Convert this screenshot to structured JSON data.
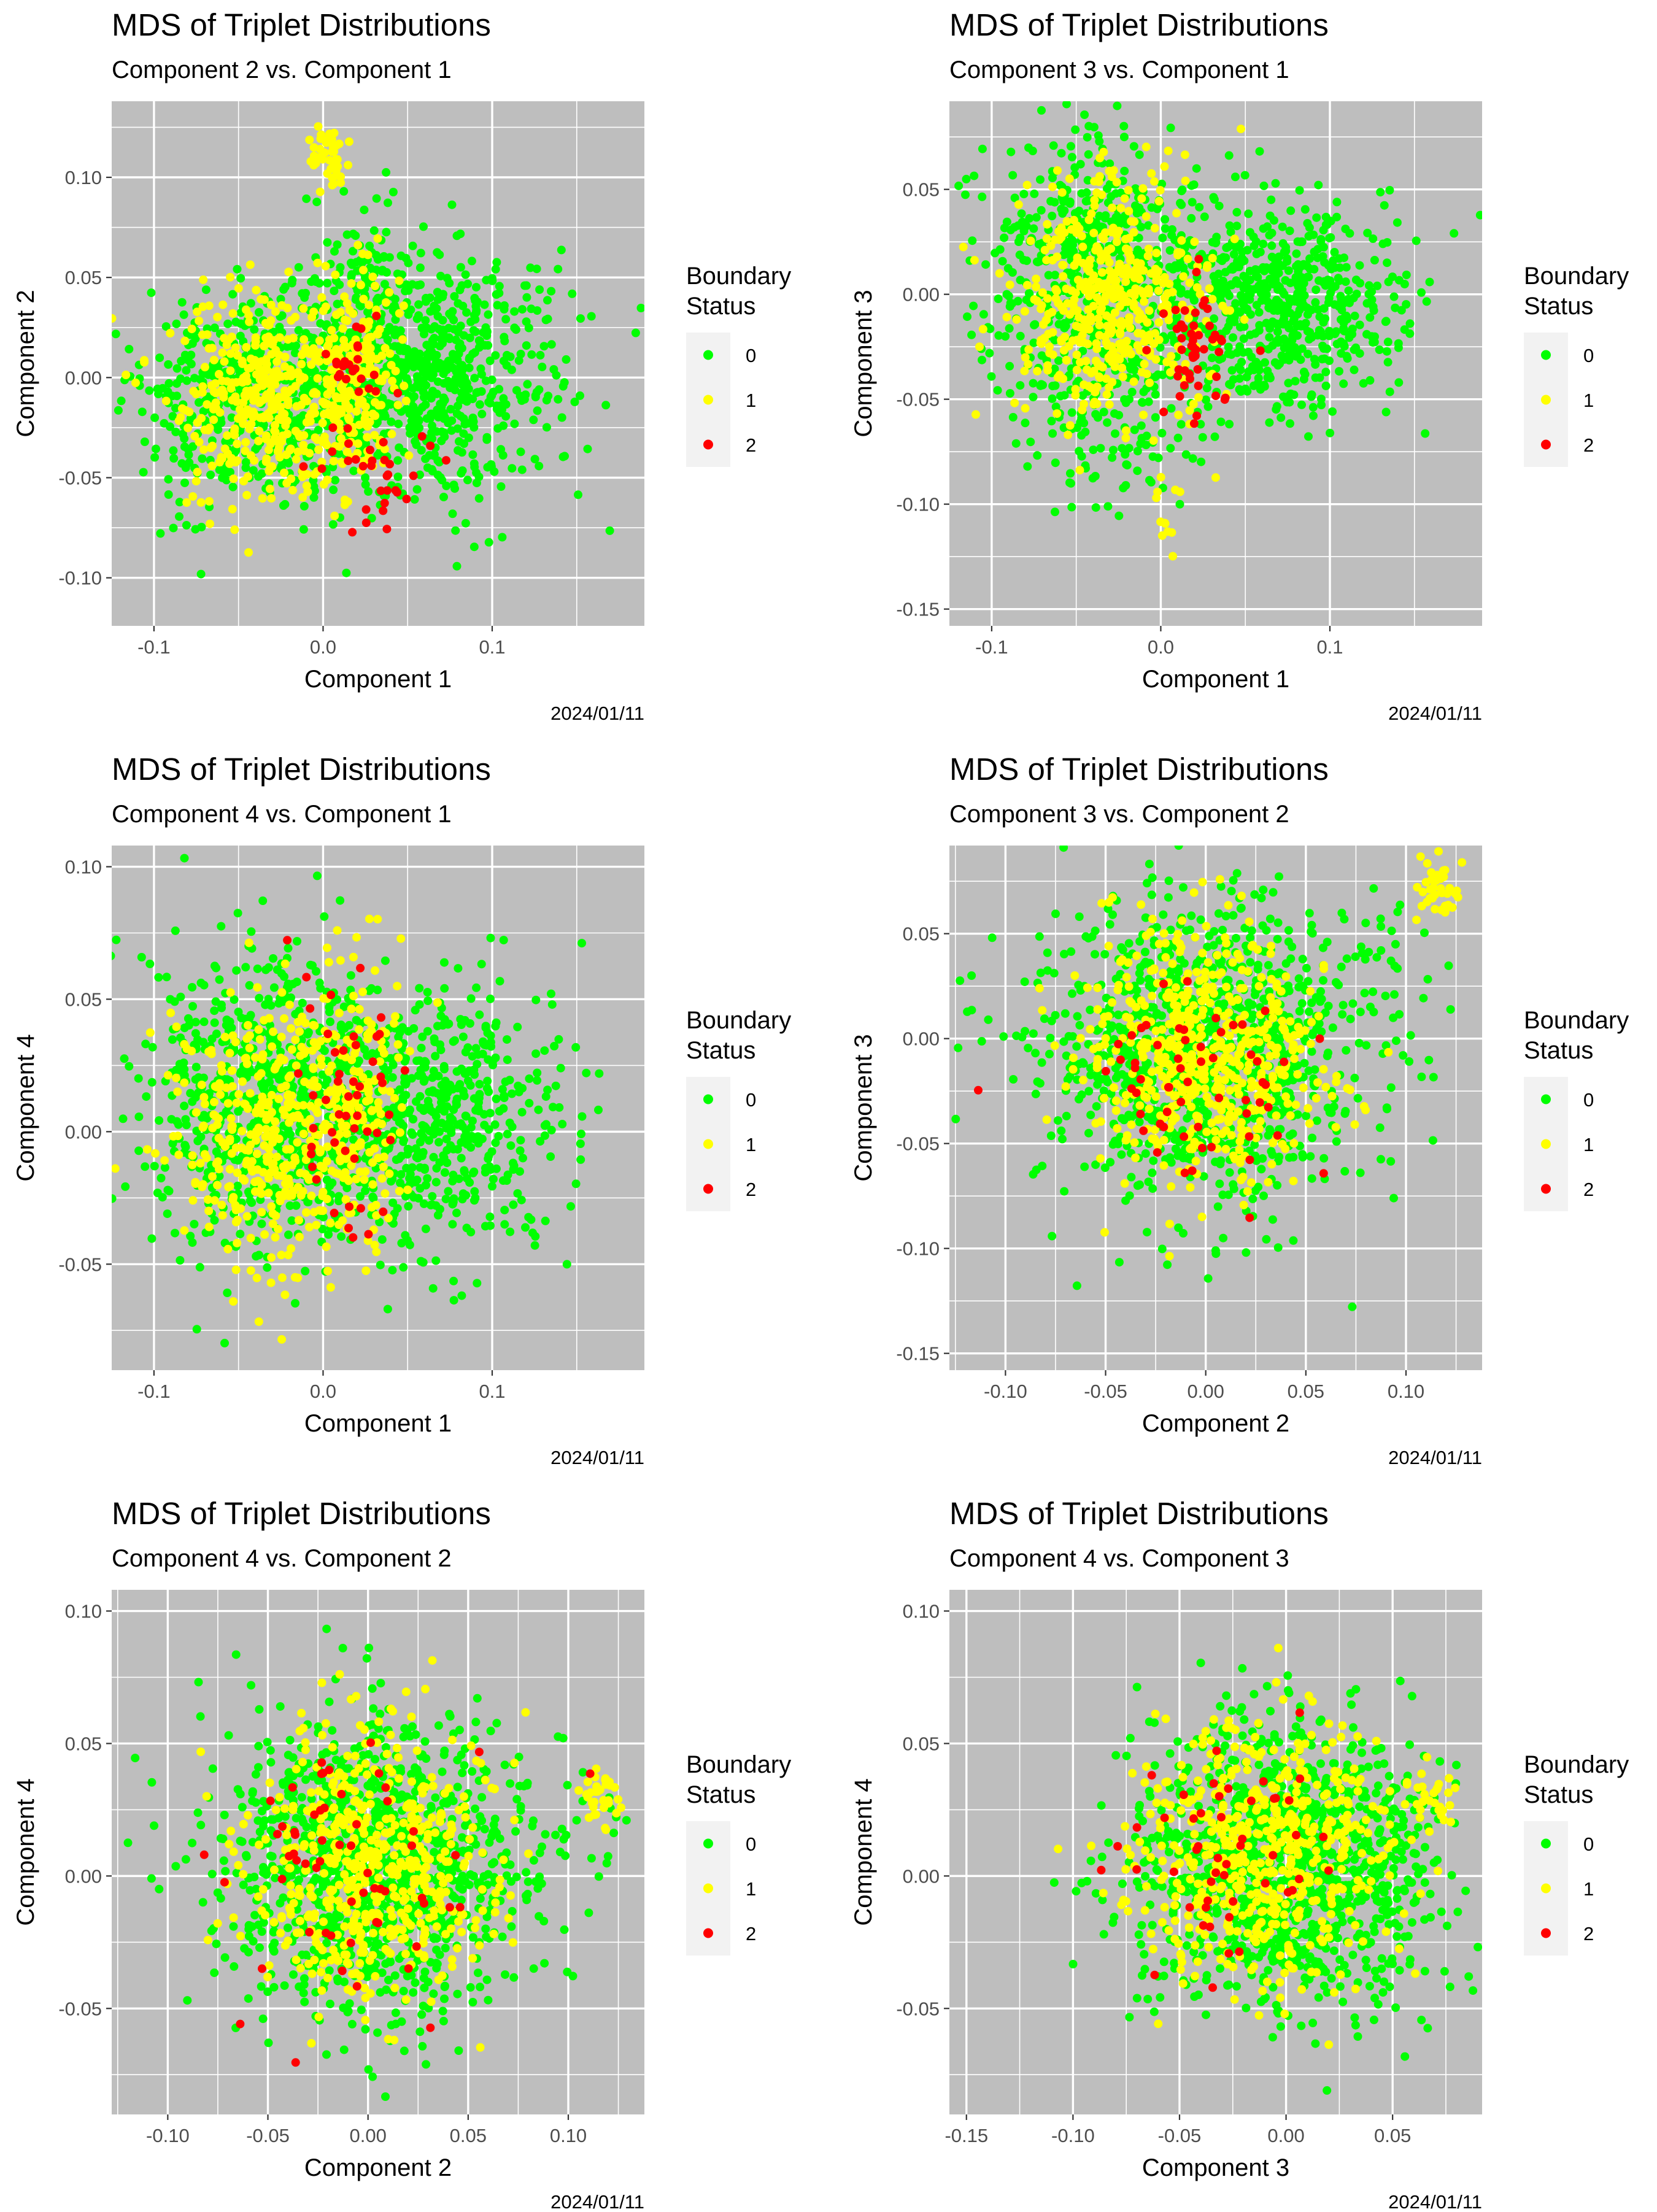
{
  "colors": {
    "panel_bg": "#bebebe",
    "grid": "#ffffff",
    "status_0": "#00ff00",
    "status_1": "#ffff00",
    "status_2": "#ff0000",
    "legend_key_bg": "#f2f2f2",
    "text": "#000000",
    "tick_text": "#4d4d4d"
  },
  "chart_data": [
    {
      "type": "scatter",
      "title": "MDS of Triplet Distributions",
      "subtitle": "Component 2 vs. Component 1",
      "xlabel": "Component 1",
      "ylabel": "Component 2",
      "caption": "2024/01/11",
      "xlim": [
        -0.125,
        0.19
      ],
      "ylim": [
        -0.124,
        0.138
      ],
      "xticks": [
        -0.1,
        0.0,
        0.1
      ],
      "xtick_labels": [
        "-0.1",
        "0.0",
        "0.1"
      ],
      "yticks": [
        -0.1,
        -0.05,
        0.0,
        0.05,
        0.1
      ],
      "ytick_labels": [
        "-0.10",
        "-0.05",
        "0.00",
        "0.05",
        "0.10"
      ],
      "legend": {
        "title_lines": [
          "Boundary",
          "Status"
        ],
        "entries": [
          "0",
          "1",
          "2"
        ],
        "position": "right"
      },
      "series": [
        {
          "name": "0",
          "clusters": [
            {
              "cx": 0.06,
              "cy": 0.0,
              "sx": 0.04,
              "sy": 0.03,
              "n": 700
            },
            {
              "cx": -0.04,
              "cy": -0.01,
              "sx": 0.035,
              "sy": 0.025,
              "n": 500
            },
            {
              "cx": 0.02,
              "cy": 0.05,
              "sx": 0.02,
              "sy": 0.02,
              "n": 100
            }
          ]
        },
        {
          "name": "1",
          "clusters": [
            {
              "cx": -0.03,
              "cy": -0.01,
              "sx": 0.03,
              "sy": 0.025,
              "n": 420
            },
            {
              "cx": 0.02,
              "cy": 0.0,
              "sx": 0.012,
              "sy": 0.025,
              "n": 150
            },
            {
              "cx": 0.005,
              "cy": 0.112,
              "sx": 0.007,
              "sy": 0.008,
              "n": 40
            }
          ]
        },
        {
          "name": "2",
          "clusters": [
            {
              "cx": 0.03,
              "cy": -0.04,
              "sx": 0.015,
              "sy": 0.02,
              "n": 40
            },
            {
              "cx": 0.015,
              "cy": 0.01,
              "sx": 0.008,
              "sy": 0.01,
              "n": 15
            }
          ]
        }
      ]
    },
    {
      "type": "scatter",
      "title": "MDS of Triplet Distributions",
      "subtitle": "Component 3 vs. Component 1",
      "xlabel": "Component 1",
      "ylabel": "Component 3",
      "caption": "2024/01/11",
      "xlim": [
        -0.125,
        0.19
      ],
      "ylim": [
        -0.158,
        0.092
      ],
      "xticks": [
        -0.1,
        0.0,
        0.1
      ],
      "xtick_labels": [
        "-0.1",
        "0.0",
        "0.1"
      ],
      "yticks": [
        -0.15,
        -0.1,
        -0.05,
        0.0,
        0.05
      ],
      "ytick_labels": [
        "-0.15",
        "-0.10",
        "-0.05",
        "0.00",
        "0.05"
      ],
      "legend": {
        "title_lines": [
          "Boundary",
          "Status"
        ],
        "entries": [
          "0",
          "1",
          "2"
        ],
        "position": "right"
      },
      "series": [
        {
          "name": "0",
          "clusters": [
            {
              "cx": 0.07,
              "cy": -0.005,
              "sx": 0.035,
              "sy": 0.025,
              "n": 600
            },
            {
              "cx": -0.04,
              "cy": 0.005,
              "sx": 0.035,
              "sy": 0.035,
              "n": 600
            },
            {
              "cx": -0.03,
              "cy": -0.07,
              "sx": 0.03,
              "sy": 0.02,
              "n": 80
            }
          ]
        },
        {
          "name": "1",
          "clusters": [
            {
              "cx": -0.03,
              "cy": 0.0,
              "sx": 0.03,
              "sy": 0.03,
              "n": 450
            },
            {
              "cx": 0.0,
              "cy": -0.11,
              "sx": 0.006,
              "sy": 0.015,
              "n": 12
            }
          ]
        },
        {
          "name": "2",
          "clusters": [
            {
              "cx": 0.02,
              "cy": -0.03,
              "sx": 0.012,
              "sy": 0.015,
              "n": 50
            }
          ]
        }
      ]
    },
    {
      "type": "scatter",
      "title": "MDS of Triplet Distributions",
      "subtitle": "Component 4 vs. Component 1",
      "xlabel": "Component 1",
      "ylabel": "Component 4",
      "caption": "2024/01/11",
      "xlim": [
        -0.125,
        0.19
      ],
      "ylim": [
        -0.09,
        0.108
      ],
      "xticks": [
        -0.1,
        0.0,
        0.1
      ],
      "xtick_labels": [
        "-0.1",
        "0.0",
        "0.1"
      ],
      "yticks": [
        -0.05,
        0.0,
        0.05,
        0.1
      ],
      "ytick_labels": [
        "-0.05",
        "0.00",
        "0.05",
        "0.10"
      ],
      "legend": {
        "title_lines": [
          "Boundary",
          "Status"
        ],
        "entries": [
          "0",
          "1",
          "2"
        ],
        "position": "right"
      },
      "series": [
        {
          "name": "0",
          "clusters": [
            {
              "cx": 0.06,
              "cy": 0.005,
              "sx": 0.04,
              "sy": 0.025,
              "n": 650
            },
            {
              "cx": -0.04,
              "cy": 0.01,
              "sx": 0.035,
              "sy": 0.028,
              "n": 600
            }
          ]
        },
        {
          "name": "1",
          "clusters": [
            {
              "cx": -0.03,
              "cy": 0.0,
              "sx": 0.03,
              "sy": 0.025,
              "n": 400
            },
            {
              "cx": 0.02,
              "cy": 0.01,
              "sx": 0.012,
              "sy": 0.025,
              "n": 150
            }
          ]
        },
        {
          "name": "2",
          "clusters": [
            {
              "cx": 0.015,
              "cy": 0.01,
              "sx": 0.015,
              "sy": 0.025,
              "n": 50
            }
          ]
        }
      ]
    },
    {
      "type": "scatter",
      "title": "MDS of Triplet Distributions",
      "subtitle": "Component 3 vs. Component 2",
      "xlabel": "Component 2",
      "ylabel": "Component 3",
      "caption": "2024/01/11",
      "xlim": [
        -0.128,
        0.138
      ],
      "ylim": [
        -0.158,
        0.092
      ],
      "xticks": [
        -0.1,
        -0.05,
        0.0,
        0.05,
        0.1
      ],
      "xtick_labels": [
        "-0.10",
        "-0.05",
        "0.00",
        "0.05",
        "0.10"
      ],
      "yticks": [
        -0.15,
        -0.1,
        -0.05,
        0.0,
        0.05
      ],
      "ytick_labels": [
        "-0.15",
        "-0.10",
        "-0.05",
        "0.00",
        "0.05"
      ],
      "legend": {
        "title_lines": [
          "Boundary",
          "Status"
        ],
        "entries": [
          "0",
          "1",
          "2"
        ],
        "position": "right"
      },
      "series": [
        {
          "name": "0",
          "clusters": [
            {
              "cx": 0.0,
              "cy": -0.005,
              "sx": 0.04,
              "sy": 0.035,
              "n": 1100
            },
            {
              "cx": 0.08,
              "cy": 0.03,
              "sx": 0.02,
              "sy": 0.02,
              "n": 30
            }
          ]
        },
        {
          "name": "1",
          "clusters": [
            {
              "cx": 0.0,
              "cy": -0.01,
              "sx": 0.03,
              "sy": 0.03,
              "n": 550
            },
            {
              "cx": 0.115,
              "cy": 0.07,
              "sx": 0.006,
              "sy": 0.007,
              "n": 40
            }
          ]
        },
        {
          "name": "2",
          "clusters": [
            {
              "cx": -0.01,
              "cy": -0.02,
              "sx": 0.03,
              "sy": 0.025,
              "n": 60
            }
          ]
        }
      ]
    },
    {
      "type": "scatter",
      "title": "MDS of Triplet Distributions",
      "subtitle": "Component 4 vs. Component 2",
      "xlabel": "Component 2",
      "ylabel": "Component 4",
      "caption": "2024/01/11",
      "xlim": [
        -0.128,
        0.138
      ],
      "ylim": [
        -0.09,
        0.108
      ],
      "xticks": [
        -0.1,
        -0.05,
        0.0,
        0.05,
        0.1
      ],
      "xtick_labels": [
        "-0.10",
        "-0.05",
        "0.00",
        "0.05",
        "0.10"
      ],
      "yticks": [
        -0.05,
        0.0,
        0.05,
        0.1
      ],
      "ytick_labels": [
        "-0.05",
        "0.00",
        "0.05",
        "0.10"
      ],
      "legend": {
        "title_lines": [
          "Boundary",
          "Status"
        ],
        "entries": [
          "0",
          "1",
          "2"
        ],
        "position": "right"
      },
      "series": [
        {
          "name": "0",
          "clusters": [
            {
              "cx": 0.0,
              "cy": 0.005,
              "sx": 0.038,
              "sy": 0.028,
              "n": 1100
            },
            {
              "cx": 0.09,
              "cy": 0.02,
              "sx": 0.02,
              "sy": 0.01,
              "n": 25
            }
          ]
        },
        {
          "name": "1",
          "clusters": [
            {
              "cx": 0.0,
              "cy": 0.005,
              "sx": 0.03,
              "sy": 0.025,
              "n": 550
            },
            {
              "cx": 0.115,
              "cy": 0.028,
              "sx": 0.006,
              "sy": 0.006,
              "n": 35
            }
          ]
        },
        {
          "name": "2",
          "clusters": [
            {
              "cx": -0.01,
              "cy": 0.005,
              "sx": 0.03,
              "sy": 0.025,
              "n": 60
            }
          ]
        }
      ]
    },
    {
      "type": "scatter",
      "title": "MDS of Triplet Distributions",
      "subtitle": "Component 4 vs. Component 3",
      "xlabel": "Component 3",
      "ylabel": "Component 4",
      "caption": "2024/01/11",
      "xlim": [
        -0.158,
        0.092
      ],
      "ylim": [
        -0.09,
        0.108
      ],
      "xticks": [
        -0.15,
        -0.1,
        -0.05,
        0.0,
        0.05
      ],
      "xtick_labels": [
        "-0.15",
        "-0.10",
        "-0.05",
        "0.00",
        "0.05"
      ],
      "yticks": [
        -0.05,
        0.0,
        0.05,
        0.1
      ],
      "ytick_labels": [
        "-0.05",
        "0.00",
        "0.05",
        "0.10"
      ],
      "legend": {
        "title_lines": [
          "Boundary",
          "Status"
        ],
        "entries": [
          "0",
          "1",
          "2"
        ],
        "position": "right"
      },
      "series": [
        {
          "name": "0",
          "clusters": [
            {
              "cx": 0.0,
              "cy": 0.005,
              "sx": 0.035,
              "sy": 0.027,
              "n": 1200
            }
          ]
        },
        {
          "name": "1",
          "clusters": [
            {
              "cx": -0.01,
              "cy": 0.01,
              "sx": 0.03,
              "sy": 0.025,
              "n": 550
            },
            {
              "cx": 0.07,
              "cy": 0.025,
              "sx": 0.008,
              "sy": 0.008,
              "n": 25
            }
          ]
        },
        {
          "name": "2",
          "clusters": [
            {
              "cx": -0.03,
              "cy": 0.01,
              "sx": 0.025,
              "sy": 0.025,
              "n": 50
            }
          ]
        }
      ]
    }
  ]
}
